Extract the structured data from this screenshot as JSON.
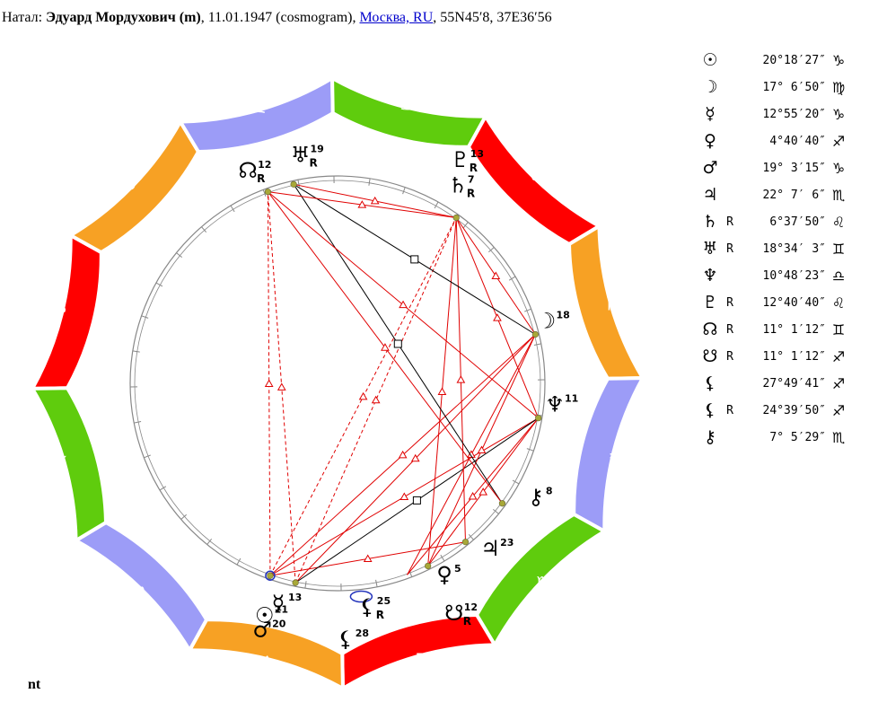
{
  "header": {
    "prefix": "Натал: ",
    "name": "Эдуард Мордухович (m)",
    "date_part": ", 11.01.1947 (cosmogram), ",
    "place": "Москва, RU",
    "coords": ", 55N45′8, 37E36′56"
  },
  "footer": {
    "label": "nt"
  },
  "colors": {
    "fire": "#ff0000",
    "earth": "#f7a124",
    "air": "#9c9cf7",
    "water": "#5fcc0d",
    "aspect_red": "#e00000",
    "aspect_black": "#000000",
    "planet_dot": "#a8a838",
    "ring_line": "#888888"
  },
  "zodiac": [
    {
      "name": "aries",
      "glyph": "♈",
      "color": "#ff0000"
    },
    {
      "name": "taurus",
      "glyph": "♉",
      "color": "#f7a124"
    },
    {
      "name": "gemini",
      "glyph": "♊",
      "color": "#9c9cf7"
    },
    {
      "name": "cancer",
      "glyph": "♋",
      "color": "#5fcc0d"
    },
    {
      "name": "leo",
      "glyph": "♌",
      "color": "#ff0000"
    },
    {
      "name": "virgo",
      "glyph": "♍",
      "color": "#f7a124"
    },
    {
      "name": "libra",
      "glyph": "♎",
      "color": "#9c9cf7"
    },
    {
      "name": "scorpio",
      "glyph": "♏",
      "color": "#5fcc0d"
    },
    {
      "name": "sagittarius",
      "glyph": "♐",
      "color": "#ff0000"
    },
    {
      "name": "capricorn",
      "glyph": "♑",
      "color": "#f7a124"
    },
    {
      "name": "aquarius",
      "glyph": "♒",
      "color": "#9c9cf7"
    },
    {
      "name": "pisces",
      "glyph": "♓",
      "color": "#5fcc0d"
    }
  ],
  "planets": [
    {
      "id": "sun",
      "glyph": "☉",
      "retro": "",
      "degree": "20°18′27″",
      "sign": "♑",
      "num": "21",
      "lon": 290.31
    },
    {
      "id": "moon",
      "glyph": "☽",
      "retro": "",
      "degree": "17° 6′50″",
      "sign": "♍",
      "num": "18",
      "lon": 167.11
    },
    {
      "id": "mercury",
      "glyph": "☿",
      "retro": "",
      "degree": "12°55′20″",
      "sign": "♑",
      "num": "13",
      "lon": 282.92
    },
    {
      "id": "venus",
      "glyph": "♀",
      "retro": "",
      "degree": " 4°40′40″",
      "sign": "♐",
      "num": "5",
      "lon": 244.68
    },
    {
      "id": "mars",
      "glyph": "♂",
      "retro": "",
      "degree": "19° 3′15″",
      "sign": "♑",
      "num": "20",
      "lon": 289.05
    },
    {
      "id": "jupiter",
      "glyph": "♃",
      "retro": "",
      "degree": "22° 7′ 6″",
      "sign": "♏",
      "num": "23",
      "lon": 232.12
    },
    {
      "id": "saturn",
      "glyph": "♄",
      "retro": "R",
      "degree": " 6°37′50″",
      "sign": "♌",
      "num": "7",
      "lon": 126.63
    },
    {
      "id": "uranus",
      "glyph": "♅",
      "retro": "R",
      "degree": "18°34′ 3″",
      "sign": "♊",
      "num": "19",
      "lon": 78.57
    },
    {
      "id": "neptune",
      "glyph": "♆",
      "retro": "",
      "degree": "10°48′23″",
      "sign": "♎",
      "num": "11",
      "lon": 190.81
    },
    {
      "id": "pluto",
      "glyph": "♇",
      "retro": "R",
      "degree": "12°40′40″",
      "sign": "♌",
      "num": "13",
      "lon": 132.68
    },
    {
      "id": "north-node",
      "glyph": "☊",
      "retro": "R",
      "degree": "11° 1′12″",
      "sign": "♊",
      "num": "12",
      "lon": 71.02
    },
    {
      "id": "south-node",
      "glyph": "☋",
      "retro": "R",
      "degree": "11° 1′12″",
      "sign": "♐",
      "num": "12",
      "lon": 251.02
    },
    {
      "id": "lilith",
      "glyph": "⚸",
      "retro": "",
      "degree": "27°49′41″",
      "sign": "♐",
      "num": "28",
      "lon": 267.83
    },
    {
      "id": "selena",
      "glyph": "⚸",
      "retro": "R",
      "degree": "24°39′50″",
      "sign": "♐",
      "num": "25",
      "lon": 264.66
    },
    {
      "id": "chiron",
      "glyph": "⚷",
      "retro": "",
      "degree": " 7° 5′29″",
      "sign": "♏",
      "num": "8",
      "lon": 217.09
    }
  ],
  "aspects": [
    {
      "a": "sun",
      "b": "jupiter",
      "style": "solid",
      "color": "red"
    },
    {
      "a": "sun",
      "b": "neptune",
      "style": "solid",
      "color": "red"
    },
    {
      "a": "sun",
      "b": "moon",
      "style": "solid",
      "color": "red"
    },
    {
      "a": "sun",
      "b": "saturn",
      "style": "dashed",
      "color": "red"
    },
    {
      "a": "sun",
      "b": "north-node",
      "style": "dashed",
      "color": "red"
    },
    {
      "a": "mercury",
      "b": "neptune",
      "style": "solid",
      "color": "black"
    },
    {
      "a": "mercury",
      "b": "moon",
      "style": "solid",
      "color": "red"
    },
    {
      "a": "mercury",
      "b": "saturn",
      "style": "dashed",
      "color": "red"
    },
    {
      "a": "mercury",
      "b": "north-node",
      "style": "dashed",
      "color": "red"
    },
    {
      "a": "venus",
      "b": "moon",
      "style": "solid",
      "color": "red"
    },
    {
      "a": "venus",
      "b": "saturn",
      "style": "solid",
      "color": "red"
    },
    {
      "a": "venus",
      "b": "neptune",
      "style": "solid",
      "color": "red"
    },
    {
      "a": "south-node",
      "b": "neptune",
      "style": "solid",
      "color": "red"
    },
    {
      "a": "south-node",
      "b": "moon",
      "style": "solid",
      "color": "red"
    },
    {
      "a": "jupiter",
      "b": "saturn",
      "style": "solid",
      "color": "red"
    },
    {
      "a": "chiron",
      "b": "uranus",
      "style": "solid",
      "color": "black"
    },
    {
      "a": "chiron",
      "b": "north-node",
      "style": "solid",
      "color": "red"
    },
    {
      "a": "neptune",
      "b": "north-node",
      "style": "solid",
      "color": "red"
    },
    {
      "a": "neptune",
      "b": "saturn",
      "style": "solid",
      "color": "red"
    },
    {
      "a": "moon",
      "b": "saturn",
      "style": "solid",
      "color": "red"
    },
    {
      "a": "moon",
      "b": "uranus",
      "style": "solid",
      "color": "black"
    },
    {
      "a": "saturn",
      "b": "north-node",
      "style": "solid",
      "color": "red"
    },
    {
      "a": "saturn",
      "b": "uranus",
      "style": "solid",
      "color": "red"
    }
  ]
}
